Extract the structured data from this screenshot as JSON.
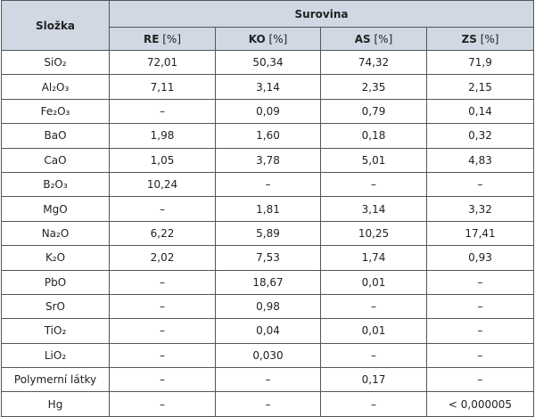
{
  "table": {
    "header": {
      "component": "Složka",
      "group": "Surovina",
      "columns": [
        {
          "name": "RE",
          "unit": "[%]"
        },
        {
          "name": "KO",
          "unit": "[%]"
        },
        {
          "name": "AS",
          "unit": "[%]"
        },
        {
          "name": "ZS",
          "unit": "[%]"
        }
      ]
    },
    "rows": [
      [
        "SiO₂",
        "72,01",
        "50,34",
        "74,32",
        "71,9"
      ],
      [
        "Al₂O₃",
        "7,11",
        "3,14",
        "2,35",
        "2,15"
      ],
      [
        "Fe₂O₃",
        "–",
        "0,09",
        "0,79",
        "0,14"
      ],
      [
        "BaO",
        "1,98",
        "1,60",
        "0,18",
        "0,32"
      ],
      [
        "CaO",
        "1,05",
        "3,78",
        "5,01",
        "4,83"
      ],
      [
        "B₂O₃",
        "10,24",
        "–",
        "–",
        "–"
      ],
      [
        "MgO",
        "–",
        "1,81",
        "3,14",
        "3,32"
      ],
      [
        "Na₂O",
        "6,22",
        "5,89",
        "10,25",
        "17,41"
      ],
      [
        "K₂O",
        "2,02",
        "7,53",
        "1,74",
        "0,93"
      ],
      [
        "PbO",
        "–",
        "18,67",
        "0,01",
        "–"
      ],
      [
        "SrO",
        "–",
        "0,98",
        "–",
        "–"
      ],
      [
        "TiO₂",
        "–",
        "0,04",
        "0,01",
        "–"
      ],
      [
        "LiO₂",
        "–",
        "0,030",
        "–",
        "–"
      ],
      [
        "Polymerní látky",
        "–",
        "–",
        "0,17",
        "–"
      ],
      [
        "Hg",
        "–",
        "–",
        "–",
        "< 0,000005"
      ]
    ]
  }
}
